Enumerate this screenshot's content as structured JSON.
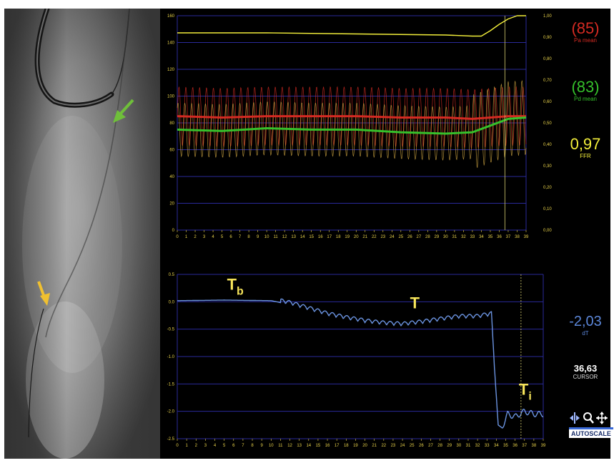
{
  "colors": {
    "pa": "#d42a22",
    "pd": "#35c12b",
    "ffr": "#f2ee3a",
    "dt": "#5b86d8",
    "cursor_val": "#ffffff",
    "grid": "#2a2a9a",
    "tick": "#e8d24a",
    "trace": "#6b93e0"
  },
  "readouts": {
    "pa_value": "(85)",
    "pa_label": "Pa mean",
    "pd_value": "(83)",
    "pd_label": "Pd mean",
    "ffr_value": "0,97",
    "ffr_label": "FFR",
    "dt_value": "-2,03",
    "dt_label": "dT",
    "cursor_value": "36,63",
    "cursor_label": "CURSOR"
  },
  "toolbar": {
    "autoscale_label": "AUTOSCALE",
    "icons": [
      "split-cursor-icon",
      "zoom-icon",
      "pan-icon"
    ]
  },
  "chart_data": [
    {
      "type": "line",
      "title": "",
      "xlabel": "",
      "ylabel": "",
      "x_ticks": [
        0,
        1,
        2,
        3,
        4,
        5,
        6,
        7,
        8,
        9,
        10,
        11,
        12,
        13,
        14,
        15,
        16,
        17,
        18,
        19,
        20,
        21,
        22,
        23,
        24,
        25,
        26,
        27,
        28,
        29,
        30,
        31,
        32,
        33,
        34,
        35,
        36,
        37,
        38,
        39
      ],
      "xlim": [
        0,
        39
      ],
      "ylim": [
        0,
        160
      ],
      "y_ticks_left": [
        0,
        20,
        40,
        60,
        80,
        100,
        120,
        140,
        160
      ],
      "ylim_right": [
        0,
        1
      ],
      "y_ticks_right": [
        "0,00",
        "0,10",
        "0,20",
        "0,30",
        "0,40",
        "0,50",
        "0,60",
        "0,70",
        "0,80",
        "0,90",
        "1,00"
      ],
      "grid": true,
      "cursor_x": 36.63,
      "series": [
        {
          "name": "FFR",
          "axis": "right",
          "x": [
            0,
            10,
            20,
            30,
            33,
            34,
            35,
            36,
            37,
            38,
            39
          ],
          "y": [
            0.92,
            0.92,
            0.915,
            0.91,
            0.905,
            0.905,
            0.93,
            0.96,
            0.985,
            1.0,
            1.0
          ]
        },
        {
          "name": "Pa mean",
          "x": [
            0,
            5,
            10,
            15,
            20,
            25,
            30,
            33,
            35,
            37,
            39
          ],
          "y": [
            85,
            84,
            85,
            85,
            85,
            84,
            84,
            83,
            84,
            85,
            85
          ]
        },
        {
          "name": "Pd mean",
          "x": [
            0,
            5,
            10,
            15,
            20,
            25,
            30,
            33,
            35,
            37,
            39
          ],
          "y": [
            75,
            74,
            76,
            75,
            75,
            73,
            72,
            73,
            78,
            83,
            84
          ]
        }
      ]
    },
    {
      "type": "line",
      "title": "",
      "xlabel": "",
      "ylabel": "",
      "x_ticks": [
        0,
        1,
        2,
        3,
        4,
        5,
        6,
        7,
        8,
        9,
        10,
        11,
        12,
        13,
        14,
        15,
        16,
        17,
        18,
        19,
        20,
        21,
        22,
        23,
        24,
        25,
        26,
        27,
        28,
        29,
        30,
        31,
        32,
        33,
        34,
        35,
        36,
        37,
        38,
        39
      ],
      "xlim": [
        0,
        39
      ],
      "ylim": [
        -2.5,
        0.5
      ],
      "y_ticks": [
        "0.5",
        "0.0",
        "-0.5",
        "-1.0",
        "-1.5",
        "-2.0",
        "-2.5"
      ],
      "grid": true,
      "cursor_x": 36.63,
      "annotations": [
        {
          "text": "T",
          "sub": "b",
          "x": 5.3,
          "y": 0.22
        },
        {
          "text": "T",
          "sub": "",
          "x": 24.8,
          "y": -0.12
        },
        {
          "text": "T",
          "sub": "i",
          "x": 36.4,
          "y": -1.7
        }
      ],
      "series": [
        {
          "name": "dT",
          "x": [
            0,
            5,
            10,
            12,
            14,
            16,
            18,
            20,
            22,
            24,
            26,
            28,
            30,
            32,
            33.5,
            33.8,
            34.2,
            34.6,
            35.2,
            36,
            37,
            38,
            39
          ],
          "y": [
            0.02,
            0.03,
            0.02,
            -0.05,
            -0.15,
            -0.25,
            -0.32,
            -0.38,
            -0.42,
            -0.44,
            -0.4,
            -0.35,
            -0.3,
            -0.3,
            -0.25,
            -1.2,
            -2.25,
            -2.3,
            -2.05,
            -2.1,
            -2.0,
            -2.05,
            -2.05
          ]
        }
      ]
    }
  ]
}
